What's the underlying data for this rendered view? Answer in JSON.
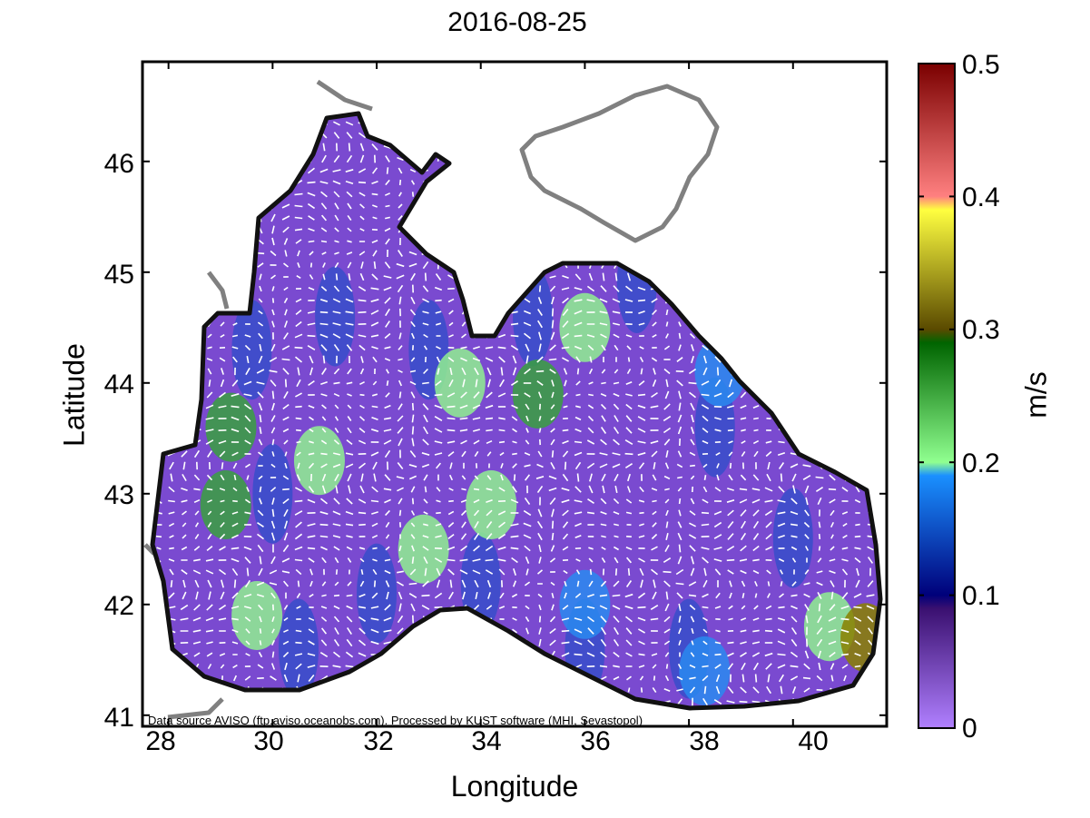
{
  "title": "2016-08-25",
  "xlabel": "Longitude",
  "ylabel": "Latitude",
  "colorbar": {
    "label": "m/s",
    "range": [
      0,
      0.5
    ],
    "ticks": [
      "0",
      "0.1",
      "0.2",
      "0.3",
      "0.4",
      "0.5"
    ]
  },
  "axes": {
    "xlim": [
      27.5,
      41.8
    ],
    "ylim": [
      40.9,
      46.9
    ],
    "xticks": [
      "28",
      "30",
      "32",
      "34",
      "36",
      "38",
      "40"
    ],
    "yticks": [
      "41",
      "42",
      "43",
      "44",
      "45",
      "46"
    ]
  },
  "source_text": "Data source AVISO (ftp.aviso.oceanobs.com). Processed by KUST software (MHI, Sevastopol)",
  "colors": {
    "land_coast": "#808080",
    "sea_coast": "#111111",
    "vectors": "#ffffff"
  },
  "chart_data": {
    "type": "quiver-map",
    "title": "2016-08-25",
    "xlabel": "Longitude",
    "ylabel": "Latitude",
    "xlim": [
      27.5,
      41.8
    ],
    "ylim": [
      40.9,
      46.9
    ],
    "colorbar_label": "m/s",
    "colorbar_range": [
      0,
      0.5
    ],
    "colorbar_bands": [
      {
        "from": 0.0,
        "to": 0.1,
        "color_from": "#b080ff",
        "color_to": "#3a1070"
      },
      {
        "from": 0.1,
        "to": 0.2,
        "color_from": "#00007a",
        "color_to": "#1a90ff"
      },
      {
        "from": 0.2,
        "to": 0.3,
        "color_from": "#90ff90",
        "color_to": "#006400"
      },
      {
        "from": 0.3,
        "to": 0.4,
        "color_from": "#5a4a00",
        "color_to": "#ffff40"
      },
      {
        "from": 0.4,
        "to": 0.5,
        "color_from": "#ff8080",
        "color_to": "#7a0000"
      }
    ],
    "high_speed_patches": [
      {
        "lon": 29.2,
        "lat": 43.6,
        "speed": 0.28
      },
      {
        "lon": 29.1,
        "lat": 42.9,
        "speed": 0.27
      },
      {
        "lon": 30.9,
        "lat": 43.3,
        "speed": 0.2
      },
      {
        "lon": 29.7,
        "lat": 41.9,
        "speed": 0.2
      },
      {
        "lon": 32.9,
        "lat": 42.5,
        "speed": 0.21
      },
      {
        "lon": 33.6,
        "lat": 44.0,
        "speed": 0.21
      },
      {
        "lon": 34.2,
        "lat": 42.9,
        "speed": 0.2
      },
      {
        "lon": 35.1,
        "lat": 43.9,
        "speed": 0.25
      },
      {
        "lon": 36.0,
        "lat": 44.5,
        "speed": 0.22
      },
      {
        "lon": 36.0,
        "lat": 42.0,
        "speed": 0.19
      },
      {
        "lon": 38.6,
        "lat": 44.1,
        "speed": 0.19
      },
      {
        "lon": 38.3,
        "lat": 41.4,
        "speed": 0.19
      },
      {
        "lon": 40.7,
        "lat": 41.8,
        "speed": 0.23
      },
      {
        "lon": 41.4,
        "lat": 41.7,
        "speed": 0.3
      }
    ]
  }
}
